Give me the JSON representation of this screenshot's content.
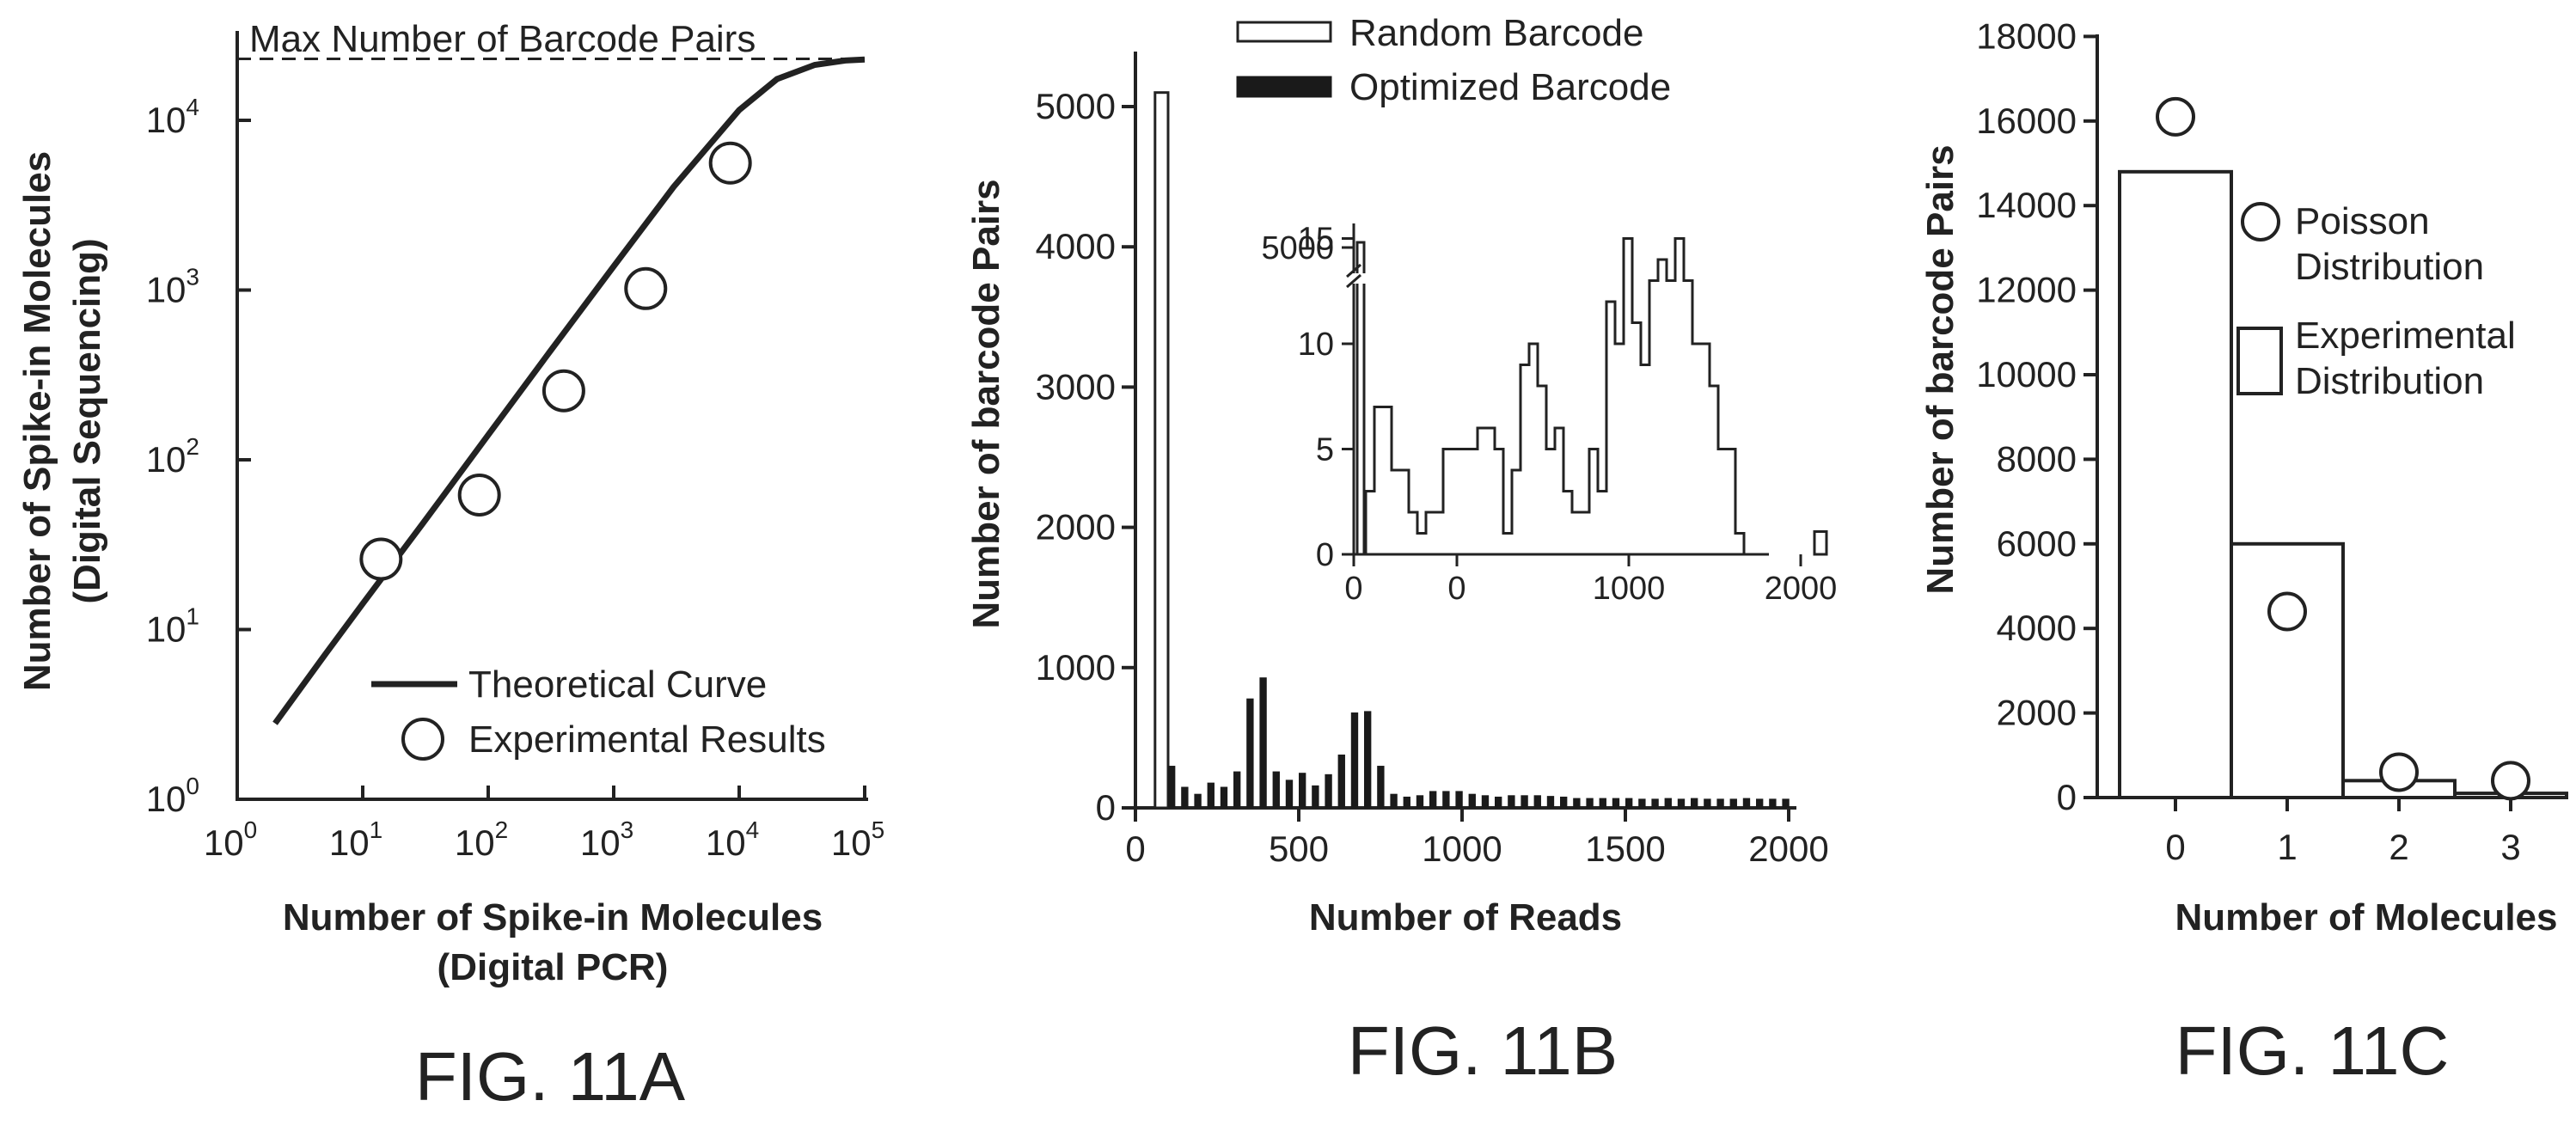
{
  "chart_data": [
    {
      "figure_label": "FIG. 11A",
      "type": "line",
      "xlabel": "Number of Spike-in Molecules",
      "xlabel2": "(Digital PCR)",
      "ylabel": "Number of Spike-in Molecules",
      "ylabel2": "(Digital Sequencing)",
      "x_scale": "log",
      "y_scale": "log",
      "xlim": [
        1,
        100000
      ],
      "ylim": [
        1,
        20000
      ],
      "x_tick_exponents": [
        "0",
        "1",
        "2",
        "3",
        "4",
        "5"
      ],
      "y_tick_exponents": [
        "0",
        "1",
        "2",
        "3",
        "4"
      ],
      "tick_base": "10",
      "annotation": "Max Number of Barcode Pairs",
      "max_pairs": 23000,
      "legend": {
        "position": "bottom-right",
        "line_label": "Theoretical Curve",
        "marker_label": "Experimental Results"
      },
      "series": [
        {
          "name": "Theoretical Curve",
          "style": "line",
          "x": [
            2,
            5,
            10,
            30,
            100,
            300,
            1000,
            3000,
            10000,
            20000,
            40000,
            70000,
            100000
          ],
          "y": [
            2.8,
            7.1,
            14.2,
            42,
            140,
            420,
            1380,
            4050,
            11500,
            17500,
            21200,
            22500,
            22800
          ]
        },
        {
          "name": "Experimental Results",
          "style": "marker",
          "x": [
            14,
            85,
            400,
            1800,
            8500
          ],
          "y": [
            26,
            62,
            255,
            1020,
            5600
          ]
        }
      ]
    },
    {
      "figure_label": "FIG. 11B",
      "type": "bar",
      "xlabel": "Number of Reads",
      "ylabel": "Number of barcode Pairs",
      "xlim": [
        0,
        2000
      ],
      "ylim": [
        0,
        5500
      ],
      "x_ticks": [
        "0",
        "500",
        "1000",
        "1500",
        "2000"
      ],
      "y_ticks": [
        "0",
        "1000",
        "2000",
        "3000",
        "4000",
        "5000"
      ],
      "legend": {
        "position": "top",
        "labels": [
          "Random Barcode",
          "Optimized Barcode"
        ],
        "colors": [
          "#ffffff",
          "#1a1a1a"
        ]
      },
      "bin_width": 40,
      "series": [
        {
          "name": "Random Barcode",
          "bins": [
            [
              60,
              100,
              5100
            ]
          ]
        },
        {
          "name": "Optimized Barcode",
          "bins": [
            [
              100,
              300
            ],
            [
              140,
              150
            ],
            [
              180,
              100
            ],
            [
              220,
              180
            ],
            [
              260,
              150
            ],
            [
              300,
              260
            ],
            [
              340,
              780
            ],
            [
              380,
              930
            ],
            [
              420,
              260
            ],
            [
              460,
              200
            ],
            [
              500,
              250
            ],
            [
              540,
              160
            ],
            [
              580,
              240
            ],
            [
              620,
              380
            ],
            [
              660,
              680
            ],
            [
              700,
              690
            ],
            [
              740,
              300
            ],
            [
              780,
              100
            ],
            [
              820,
              80
            ],
            [
              860,
              90
            ],
            [
              900,
              120
            ],
            [
              940,
              120
            ],
            [
              980,
              120
            ],
            [
              1020,
              100
            ],
            [
              1060,
              90
            ],
            [
              1100,
              80
            ],
            [
              1140,
              90
            ],
            [
              1180,
              90
            ],
            [
              1220,
              90
            ],
            [
              1260,
              85
            ],
            [
              1300,
              80
            ],
            [
              1340,
              70
            ],
            [
              1380,
              70
            ],
            [
              1420,
              70
            ],
            [
              1460,
              70
            ],
            [
              1500,
              70
            ],
            [
              1540,
              65
            ],
            [
              1580,
              65
            ],
            [
              1620,
              70
            ],
            [
              1660,
              65
            ],
            [
              1700,
              70
            ],
            [
              1740,
              65
            ],
            [
              1780,
              65
            ],
            [
              1820,
              65
            ],
            [
              1860,
              70
            ],
            [
              1900,
              65
            ],
            [
              1940,
              65
            ],
            [
              1980,
              65
            ]
          ]
        }
      ],
      "inset": {
        "x_ticks": [
          "0",
          "0",
          "1000",
          "2000"
        ],
        "x_tick_values": [
          -600,
          0,
          1000,
          2000
        ],
        "y_ticks": [
          "0",
          "5",
          "10",
          "15"
        ],
        "y_break_label": "5000",
        "ylim": [
          0,
          17
        ],
        "bars": [
          [
            -600,
            -530,
            5000
          ],
          [
            2080,
            2150,
            1
          ]
        ],
        "step_bin_width": 50,
        "step_start": -530,
        "step_values": [
          3,
          7,
          7,
          4,
          4,
          2,
          1,
          2,
          2,
          5,
          5,
          5,
          5,
          6,
          6,
          5,
          1,
          4,
          9,
          10,
          8,
          5,
          6,
          3,
          2,
          2,
          5,
          3,
          12,
          10,
          15,
          11,
          9,
          13,
          14,
          13,
          15,
          13,
          10,
          10,
          8,
          5,
          5,
          1
        ]
      }
    },
    {
      "figure_label": "FIG. 11C",
      "type": "bar",
      "xlabel": "Number of Molecules",
      "ylabel": "Number of barcode Pairs",
      "xlim": [
        -0.7,
        4.2
      ],
      "ylim": [
        0,
        18000
      ],
      "x_ticks": [
        "0",
        "1",
        "2",
        "3"
      ],
      "y_ticks": [
        "0",
        "2000",
        "4000",
        "6000",
        "8000",
        "10000",
        "12000",
        "14000",
        "16000",
        "18000"
      ],
      "legend": {
        "position": "right",
        "poisson_lines": [
          "Poisson",
          "Distribution"
        ],
        "experimental_lines": [
          "Experimental",
          "Distribution"
        ]
      },
      "series": [
        {
          "name": "Experimental Distribution",
          "style": "bar",
          "x": [
            0,
            1,
            2,
            3
          ],
          "values": [
            14800,
            6000,
            400,
            100
          ]
        },
        {
          "name": "Poisson Distribution",
          "style": "marker",
          "x": [
            0,
            1,
            2,
            3
          ],
          "values": [
            16100,
            4400,
            600,
            400
          ]
        }
      ]
    }
  ]
}
